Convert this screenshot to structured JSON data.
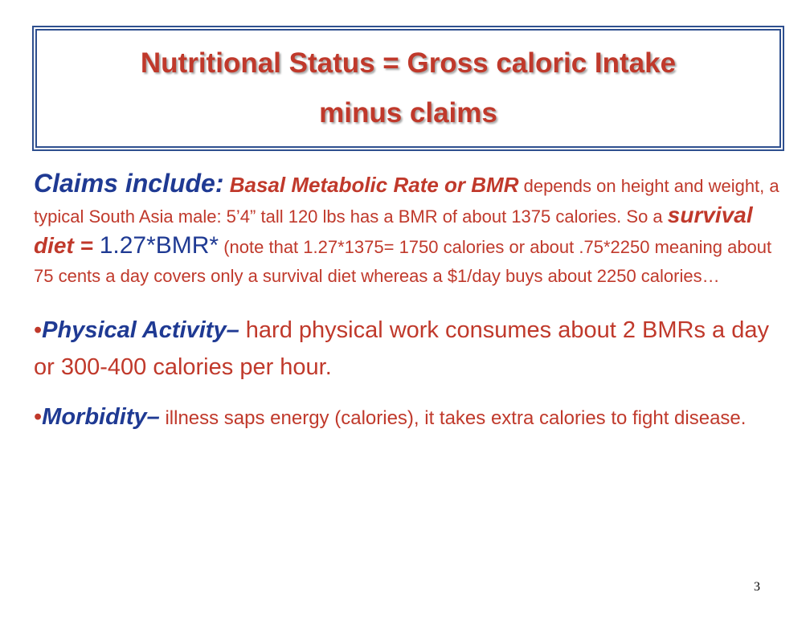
{
  "title": {
    "line1": "Nutritional Status = Gross caloric Intake",
    "line2": "minus claims"
  },
  "paragraph": {
    "lead": "Claims include:",
    "bmr_phrase": " Basal Metabolic Rate or BMR",
    "text1": " depends on height and weight, a typical South Asia male: 5’4” tall 120 lbs has a BMR of about 1375 calories. So a ",
    "survival": "survival diet",
    "equals": " = ",
    "formula": "1.27*BMR*",
    "text2": " (note that 1.27*1375= 1750 calories or about .75*2250 meaning about 75 cents a day covers only a survival diet whereas a $1/day buys about 2250 calories…"
  },
  "bullets": [
    {
      "dot": "•",
      "label": "Physical Activity–",
      "text": " hard physical work  consumes about 2 BMRs a day or 300-400  calories per hour."
    },
    {
      "dot": "•",
      "label": "Morbidity–",
      "text": " illness saps energy (calories), it takes extra calories to fight disease."
    }
  ],
  "slide_number": "3",
  "colors": {
    "title_red": "#c0392b",
    "body_blue": "#2d3a8c",
    "border_blue": "#2e4f8f"
  }
}
